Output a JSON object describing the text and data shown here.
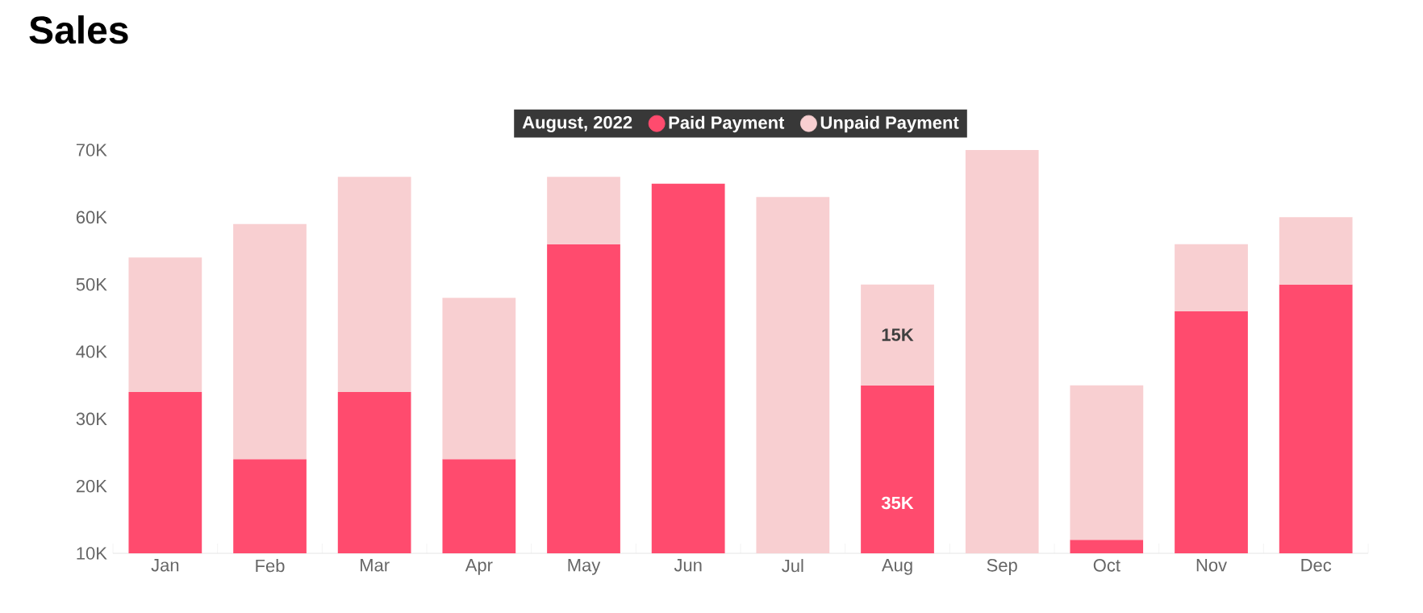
{
  "chart_data": {
    "type": "bar",
    "title": "Sales",
    "stacked": true,
    "legend": "top",
    "legend_title": "August, 2022",
    "categories": [
      "Jan",
      "Feb",
      "Mar",
      "Apr",
      "May",
      "Jun",
      "Jul",
      "Aug",
      "Sep",
      "Oct",
      "Nov",
      "Dec"
    ],
    "series": [
      {
        "name": "Paid Payment",
        "color": "#ff4b6e",
        "values": [
          34000,
          24000,
          34000,
          24000,
          56000,
          65000,
          null,
          35000,
          null,
          12000,
          46000,
          50000
        ],
        "value_labels": [
          null,
          null,
          null,
          null,
          null,
          null,
          null,
          "35K",
          null,
          null,
          null,
          null
        ]
      },
      {
        "name": "Unpaid Payment",
        "color": "#f8cfd1",
        "values": [
          20000,
          35000,
          32000,
          24000,
          10000,
          null,
          63000,
          15000,
          70000,
          23000,
          10000,
          10000
        ],
        "value_labels": [
          null,
          null,
          null,
          null,
          null,
          null,
          null,
          "15K",
          null,
          null,
          null,
          null
        ]
      }
    ],
    "ylim": [
      10000,
      70000
    ],
    "yticks": [
      {
        "value": 10000,
        "label": "10K"
      },
      {
        "value": 20000,
        "label": "20K"
      },
      {
        "value": 30000,
        "label": "30K"
      },
      {
        "value": 40000,
        "label": "40K"
      },
      {
        "value": 50000,
        "label": "50K"
      },
      {
        "value": 60000,
        "label": "60K"
      },
      {
        "value": 70000,
        "label": "70K"
      }
    ]
  }
}
